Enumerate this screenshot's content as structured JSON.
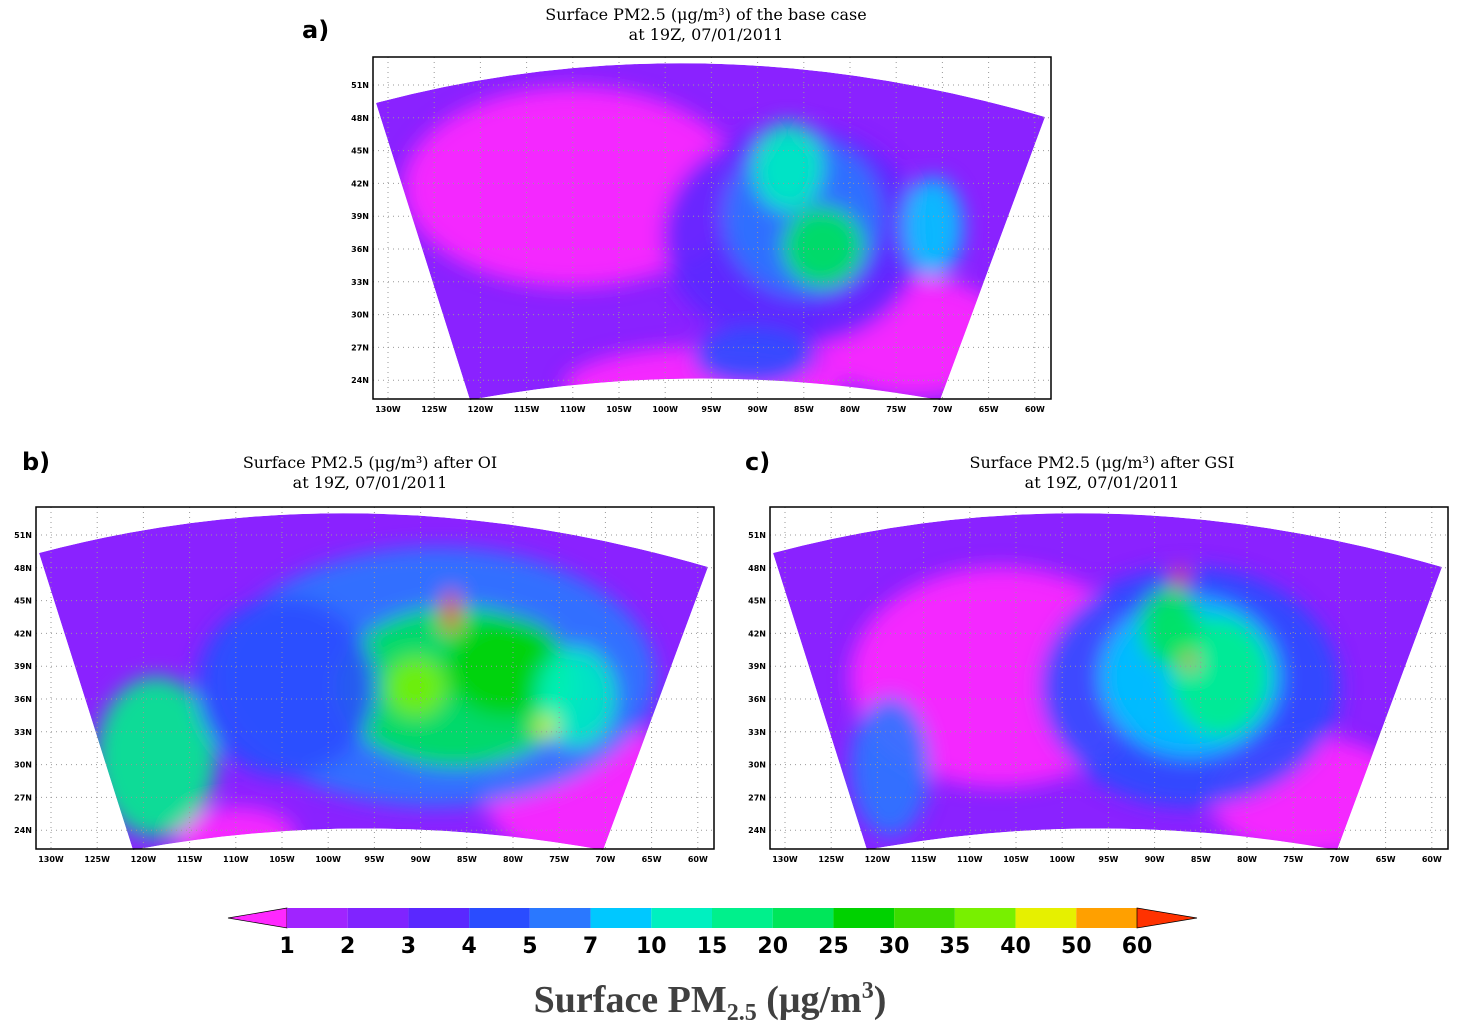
{
  "panels": [
    {
      "label": "a)",
      "title": [
        "Surface PM2.5 (μg/m³) of the base case",
        "at 19Z, 07/01/2011"
      ]
    },
    {
      "label": "b)",
      "title": [
        "Surface PM2.5 (μg/m³) after OI",
        "at 19Z, 07/01/2011"
      ]
    },
    {
      "label": "c)",
      "title": [
        "Surface PM2.5 (μg/m³) after GSI",
        "at 19Z, 07/01/2011"
      ]
    }
  ],
  "map": {
    "lat_ticks": [
      {
        "value": 51,
        "label": "51N"
      },
      {
        "value": 48,
        "label": "48N"
      },
      {
        "value": 45,
        "label": "45N"
      },
      {
        "value": 42,
        "label": "42N"
      },
      {
        "value": 39,
        "label": "39N"
      },
      {
        "value": 36,
        "label": "36N"
      },
      {
        "value": 33,
        "label": "33N"
      },
      {
        "value": 30,
        "label": "30N"
      },
      {
        "value": 27,
        "label": "27N"
      },
      {
        "value": 24,
        "label": "24N"
      }
    ],
    "lon_ticks": [
      {
        "value": -130,
        "label": "130W"
      },
      {
        "value": -125,
        "label": "125W"
      },
      {
        "value": -120,
        "label": "120W"
      },
      {
        "value": -115,
        "label": "115W"
      },
      {
        "value": -110,
        "label": "110W"
      },
      {
        "value": -105,
        "label": "105W"
      },
      {
        "value": -100,
        "label": "100W"
      },
      {
        "value": -95,
        "label": "95W"
      },
      {
        "value": -90,
        "label": "90W"
      },
      {
        "value": -85,
        "label": "85W"
      },
      {
        "value": -80,
        "label": "80W"
      },
      {
        "value": -75,
        "label": "75W"
      },
      {
        "value": -70,
        "label": "70W"
      },
      {
        "value": -65,
        "label": "65W"
      },
      {
        "value": -60,
        "label": "60W"
      }
    ]
  },
  "colorbar": {
    "levels": [
      1,
      2,
      3,
      4,
      5,
      7,
      10,
      15,
      20,
      25,
      30,
      35,
      40,
      50,
      60
    ],
    "under_color": "#ff28ff",
    "colors": [
      "#a024ff",
      "#8024ff",
      "#5a28ff",
      "#2a4cff",
      "#2a78ff",
      "#00c8ff",
      "#00f0c0",
      "#00f08c",
      "#00e65a",
      "#00d200",
      "#3cdc00",
      "#78f000",
      "#e6f000",
      "#ffa000"
    ],
    "over_color": "#ff3200",
    "title": {
      "prefix": "Surface PM",
      "subscript": "2.5",
      "unit": " (μg/m",
      "superscript": "3",
      "close": ")"
    }
  }
}
